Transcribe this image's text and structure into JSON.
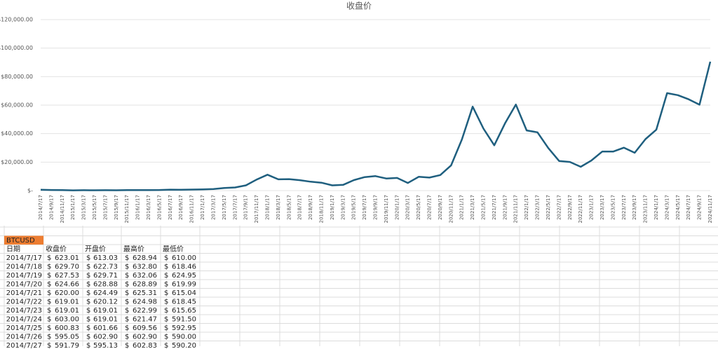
{
  "chart_data": {
    "type": "line",
    "title": "收盘价",
    "categories": [
      "2014/7/17",
      "2014/9/17",
      "2014/11/17",
      "2015/1/17",
      "2015/3/17",
      "2015/5/17",
      "2015/7/17",
      "2015/9/17",
      "2015/11/17",
      "2016/1/17",
      "2016/3/17",
      "2016/5/17",
      "2016/7/17",
      "2016/9/17",
      "2016/11/17",
      "2017/1/17",
      "2017/3/17",
      "2017/5/17",
      "2017/7/17",
      "2017/9/17",
      "2017/11/17",
      "2018/1/17",
      "2018/3/17",
      "2018/5/17",
      "2018/7/17",
      "2018/9/17",
      "2018/11/17",
      "2019/1/17",
      "2019/3/17",
      "2019/5/17",
      "2019/7/17",
      "2019/9/17",
      "2019/11/17",
      "2020/1/17",
      "2020/3/17",
      "2020/5/17",
      "2020/7/17",
      "2020/9/17",
      "2020/11/17",
      "2021/1/17",
      "2021/3/17",
      "2021/5/17",
      "2021/7/17",
      "2021/9/17",
      "2021/11/17",
      "2022/1/17",
      "2022/3/17",
      "2022/5/17",
      "2022/7/17",
      "2022/9/17",
      "2022/11/17",
      "2023/1/17",
      "2023/3/17",
      "2023/5/17",
      "2023/7/17",
      "2023/9/17",
      "2023/11/17",
      "2024/1/17",
      "2024/3/17",
      "2024/5/17",
      "2024/7/17",
      "2024/9/17",
      "2024/11/17"
    ],
    "values": [
      623,
      457,
      388,
      200,
      285,
      237,
      279,
      233,
      335,
      380,
      417,
      454,
      679,
      606,
      740,
      908,
      1070,
      1800,
      2230,
      3680,
      7790,
      11180,
      7900,
      8060,
      7320,
      6260,
      5580,
      3680,
      4030,
      7360,
      9470,
      10190,
      8510,
      8910,
      5360,
      9670,
      9160,
      10940,
      17680,
      35830,
      58910,
      43540,
      31800,
      47280,
      60370,
      42250,
      40920,
      29870,
      20780,
      20110,
      16700,
      21180,
      27420,
      27400,
      30140,
      26570,
      36170,
      42740,
      68390,
      67000,
      64100,
      60300,
      90500
    ],
    "color": "#1f5f7f",
    "ylim": [
      0,
      120000
    ],
    "yticks": [
      {
        "value": 0,
        "label": "$-"
      },
      {
        "value": 20000,
        "label": "$20,000.00"
      },
      {
        "value": 40000,
        "label": "$40,000.00"
      },
      {
        "value": 60000,
        "label": "$60,000.00"
      },
      {
        "value": 80000,
        "label": "$80,000.00"
      },
      {
        "value": 100000,
        "label": "$100,000.00"
      },
      {
        "value": 120000,
        "label": "$120,000.00"
      }
    ],
    "grid": true
  },
  "table": {
    "name": "BTCUSD",
    "currency_symbol": "$",
    "header": [
      "日期",
      "收盘价",
      "开盘价",
      "最高价",
      "最低价"
    ],
    "rows": [
      [
        "2014/7/17",
        "623.01",
        "613.03",
        "628.94",
        "610.00"
      ],
      [
        "2014/7/18",
        "629.70",
        "622.73",
        "632.80",
        "618.46"
      ],
      [
        "2014/7/19",
        "627.53",
        "629.71",
        "632.06",
        "624.95"
      ],
      [
        "2014/7/20",
        "624.66",
        "628.88",
        "628.89",
        "619.99"
      ],
      [
        "2014/7/21",
        "620.00",
        "624.49",
        "625.31",
        "615.04"
      ],
      [
        "2014/7/22",
        "619.01",
        "620.12",
        "624.98",
        "618.45"
      ],
      [
        "2014/7/23",
        "619.01",
        "619.01",
        "622.99",
        "615.65"
      ],
      [
        "2014/7/24",
        "603.00",
        "619.01",
        "621.47",
        "591.50"
      ],
      [
        "2014/7/25",
        "600.83",
        "601.66",
        "609.56",
        "592.95"
      ],
      [
        "2014/7/26",
        "595.05",
        "602.90",
        "602.90",
        "590.00"
      ],
      [
        "2014/7/27",
        "591.79",
        "595.13",
        "602.83",
        "590.20"
      ]
    ]
  }
}
